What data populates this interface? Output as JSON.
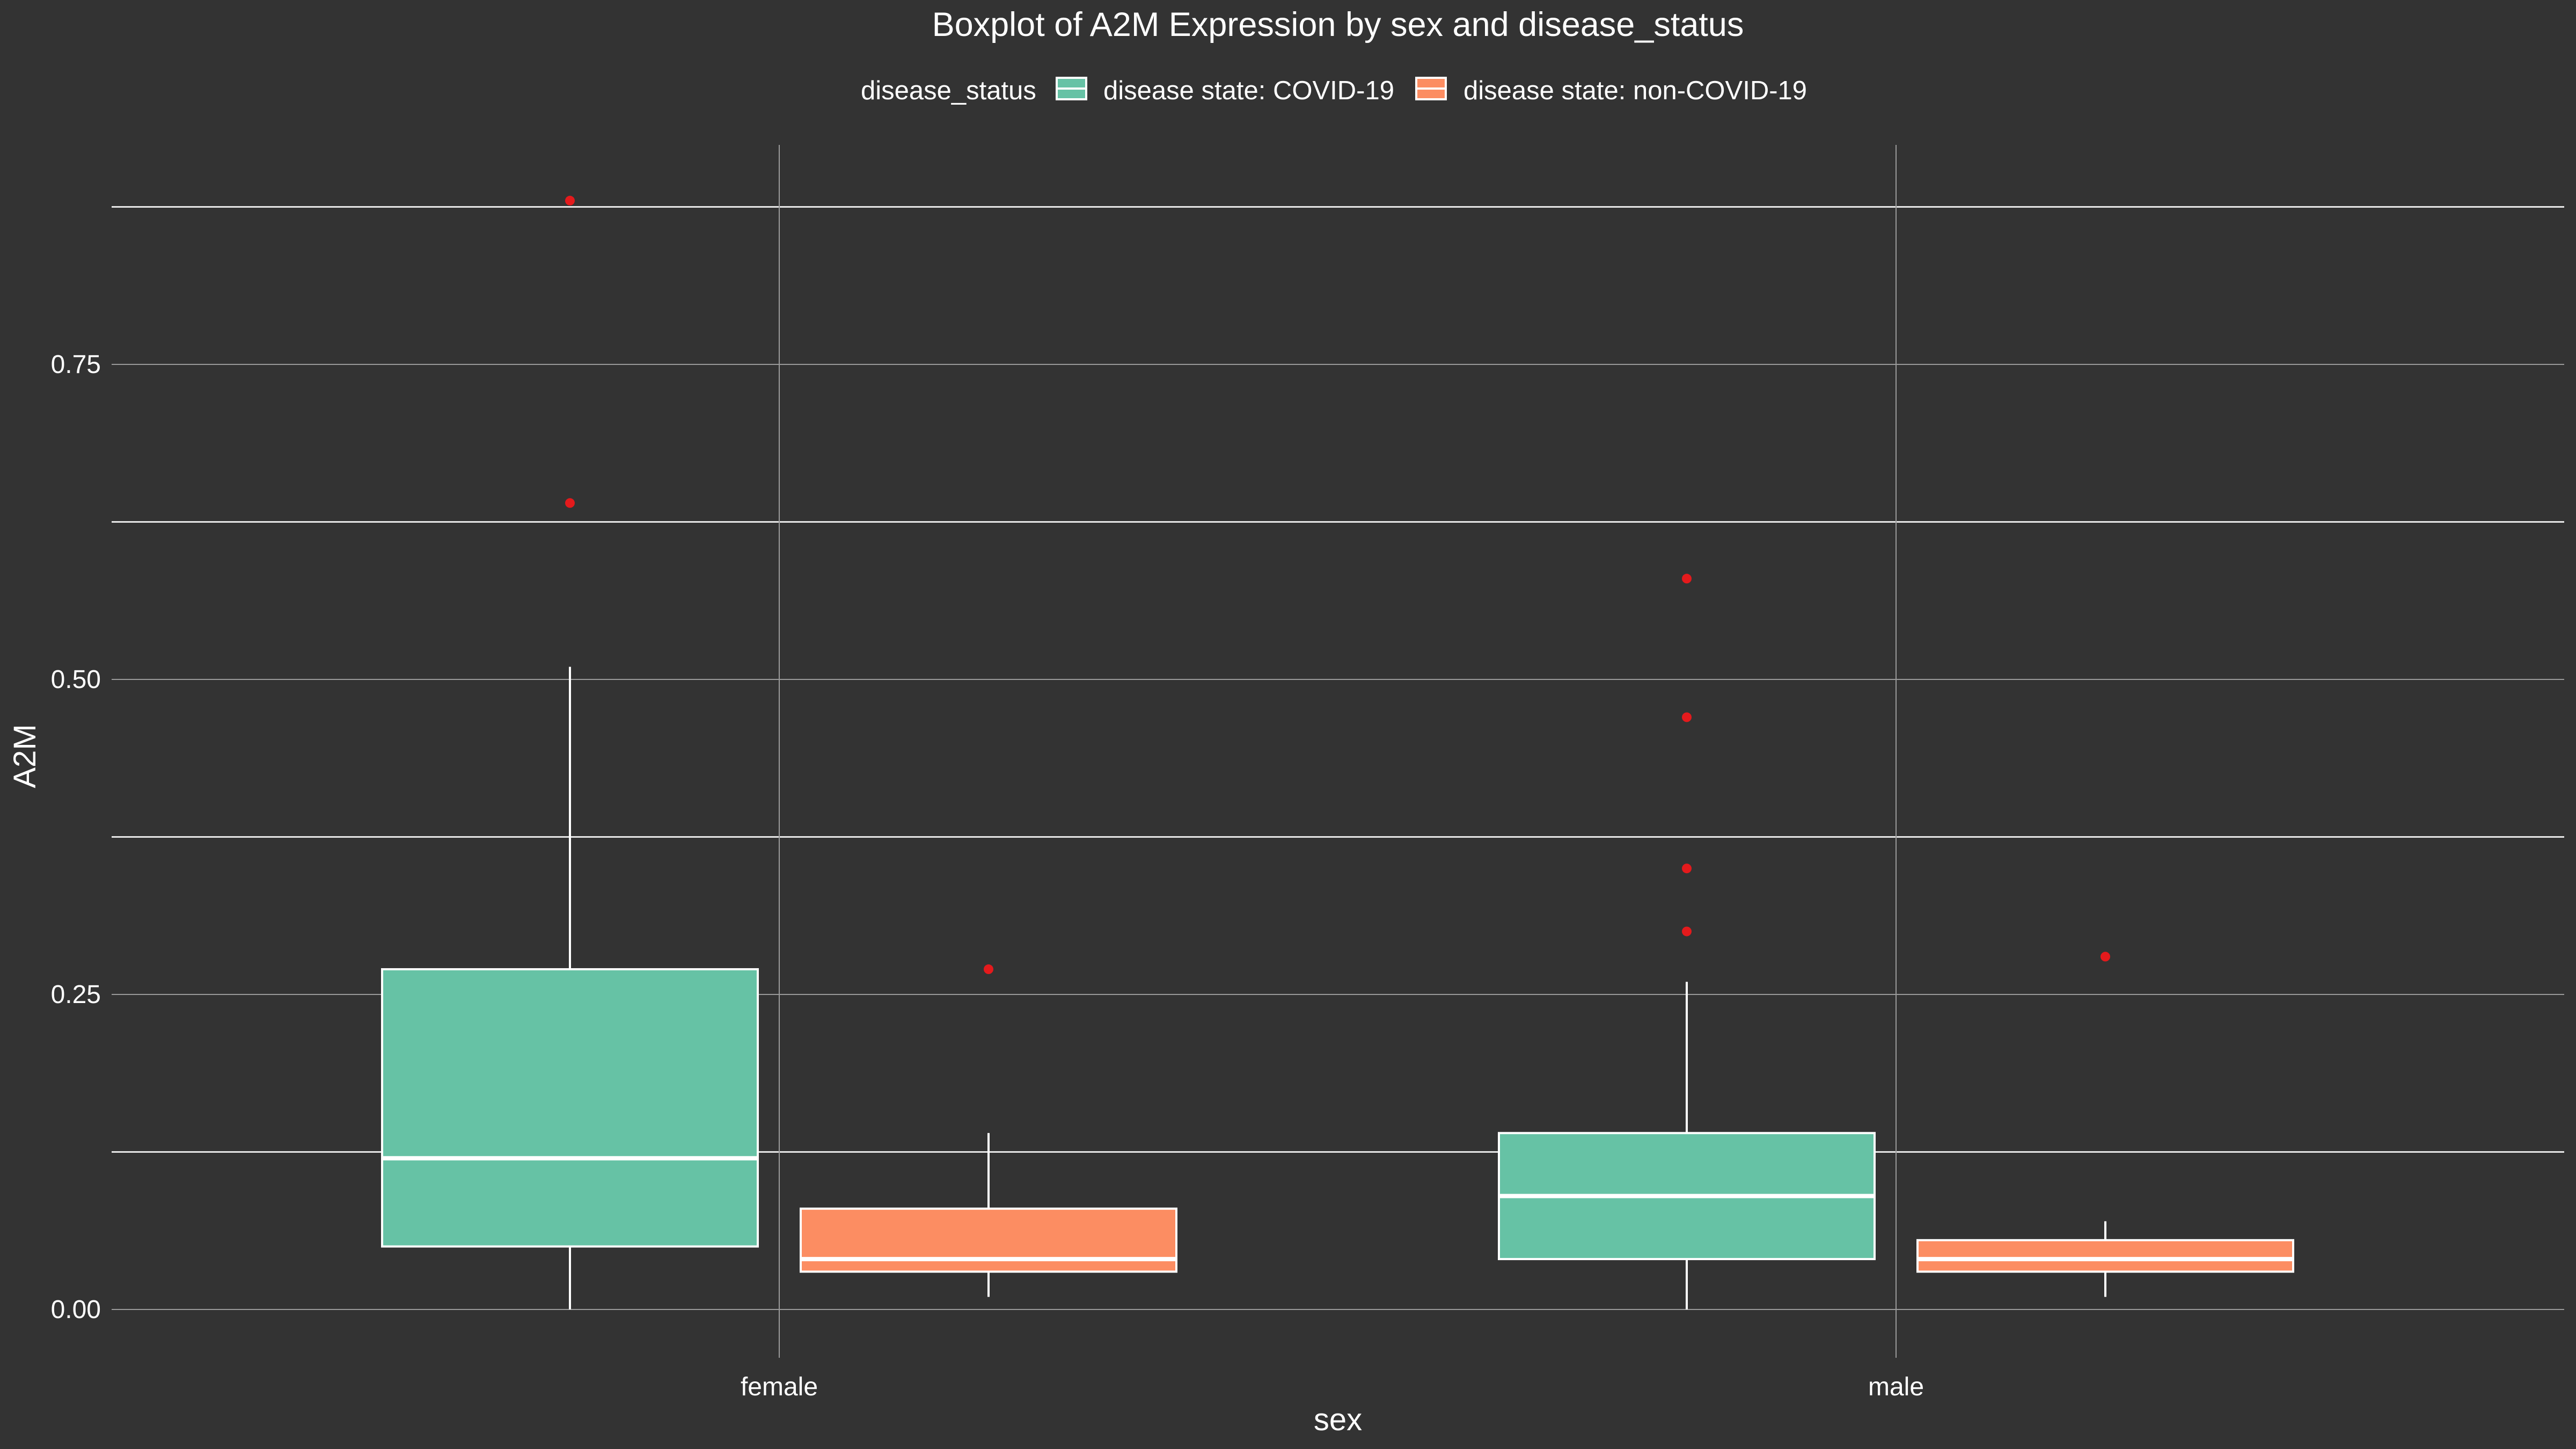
{
  "chart_data": {
    "type": "boxplot",
    "title": "Boxplot of A2M Expression by sex and disease_status",
    "xlabel": "sex",
    "ylabel": "A2M",
    "ylim": [
      -0.05,
      0.93
    ],
    "yticks": [
      0.0,
      0.25,
      0.5,
      0.75
    ],
    "ytick_labels": [
      "0.00",
      "0.25",
      "0.50",
      "0.75"
    ],
    "yminor": [
      0.125,
      0.375,
      0.625,
      0.875
    ],
    "categories": [
      "female",
      "male"
    ],
    "legend": {
      "title": "disease_status",
      "position": "top",
      "entries": [
        "disease state: COVID-19",
        "disease state: non-COVID-19"
      ]
    },
    "grid": true,
    "series": [
      {
        "name": "disease state: COVID-19",
        "color": "#66c2a5",
        "boxes": [
          {
            "category": "female",
            "whisker_low": 0.0,
            "q1": 0.05,
            "median": 0.12,
            "q3": 0.27,
            "whisker_high": 0.51,
            "outliers": [
              0.64,
              0.88
            ]
          },
          {
            "category": "male",
            "whisker_low": 0.0,
            "q1": 0.04,
            "median": 0.09,
            "q3": 0.14,
            "whisker_high": 0.26,
            "outliers": [
              0.3,
              0.35,
              0.47,
              0.58
            ]
          }
        ]
      },
      {
        "name": "disease state: non-COVID-19",
        "color": "#fc8d62",
        "boxes": [
          {
            "category": "female",
            "whisker_low": 0.01,
            "q1": 0.03,
            "median": 0.04,
            "q3": 0.08,
            "whisker_high": 0.14,
            "outliers": [
              0.27
            ]
          },
          {
            "category": "male",
            "whisker_low": 0.01,
            "q1": 0.03,
            "median": 0.04,
            "q3": 0.055,
            "whisker_high": 0.07,
            "outliers": [
              0.28
            ]
          }
        ]
      }
    ],
    "outlier_color": "#e41a1c"
  }
}
